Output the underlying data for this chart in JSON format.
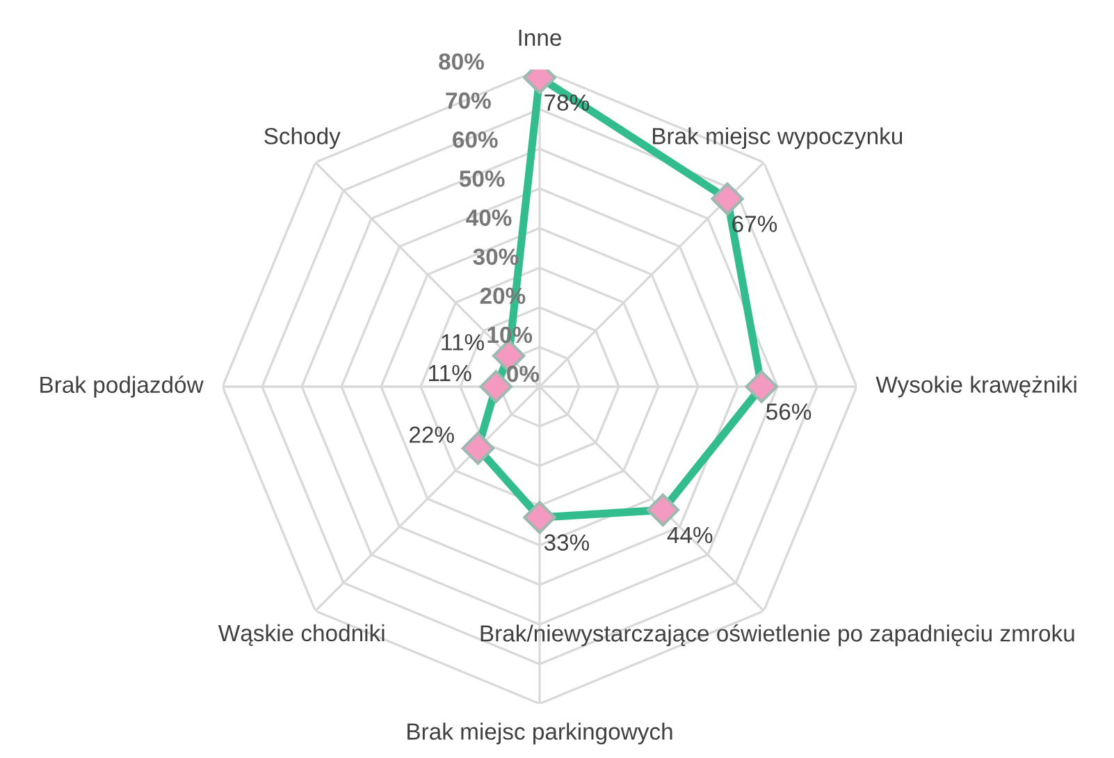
{
  "chart_data": {
    "type": "radar",
    "categories": [
      "Inne",
      "Brak miejsc wypoczynku",
      "Wysokie krawężniki",
      "Brak/niewystarczające oświetlenie po zapadnięciu zmroku",
      "Brak miejsc parkingowych",
      "Wąskie chodniki",
      "Brak podjazdów",
      "Schody"
    ],
    "series": [
      {
        "color": "#33bd8f",
        "values": [
          78,
          67,
          56,
          44,
          33,
          22,
          11,
          11
        ],
        "value_labels": [
          "78%",
          "67%",
          "56%",
          "44%",
          "33%",
          "22%",
          "11%",
          "11%"
        ]
      }
    ],
    "ylim": [
      0,
      80
    ],
    "yticks": [
      {
        "value": 0,
        "label": "0%"
      },
      {
        "value": 10,
        "label": "10%"
      },
      {
        "value": 20,
        "label": "20%"
      },
      {
        "value": 30,
        "label": "30%"
      },
      {
        "value": 40,
        "label": "40%"
      },
      {
        "value": 50,
        "label": "50%"
      },
      {
        "value": 60,
        "label": "60%"
      },
      {
        "value": 70,
        "label": "70%"
      },
      {
        "value": 80,
        "label": "80%"
      }
    ],
    "grid": true,
    "marker": "diamond",
    "line_style": "solid",
    "legend": false
  }
}
